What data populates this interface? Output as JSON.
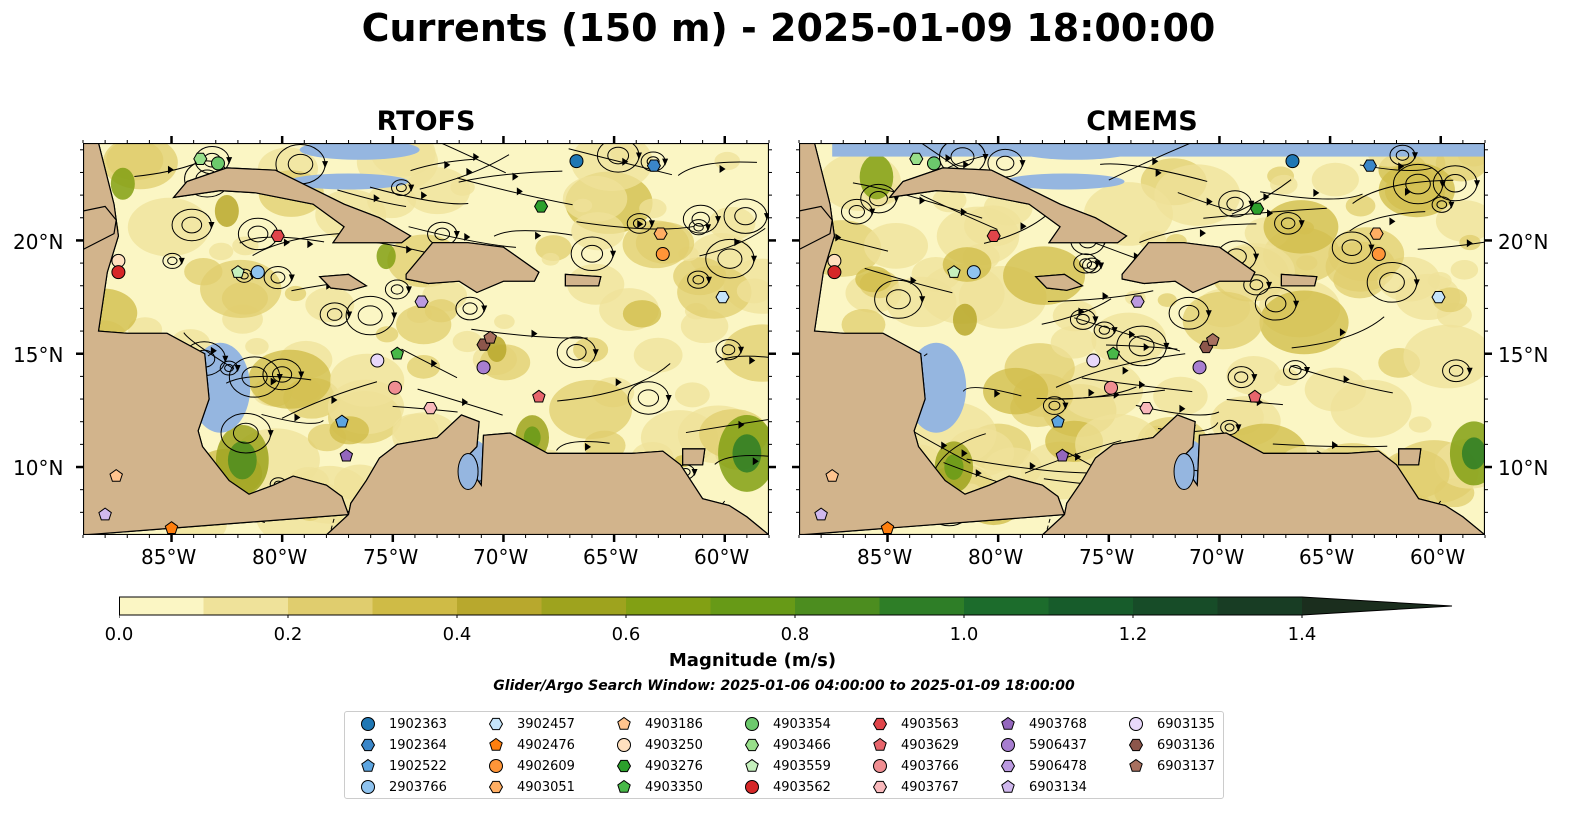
{
  "title": "Currents (150 m) - 2025-01-09 18:00:00",
  "panels": [
    {
      "title": "RTOFS"
    },
    {
      "title": "CMEMS"
    }
  ],
  "axes": {
    "lon_ticks": [
      "85°W",
      "80°W",
      "75°W",
      "70°W",
      "65°W",
      "60°W"
    ],
    "lat_ticks": [
      "20°N",
      "15°N",
      "10°N"
    ]
  },
  "colorbar": {
    "label": "Magnitude (m/s)",
    "ticks": [
      "0.0",
      "0.2",
      "0.4",
      "0.6",
      "0.8",
      "1.0",
      "1.2",
      "1.4"
    ],
    "range": [
      0.0,
      1.5
    ],
    "colors": [
      "#fbf6c4",
      "#efe29a",
      "#e0cd6e",
      "#cfbb46",
      "#b8a82d",
      "#9ea31e",
      "#82a014",
      "#679a17",
      "#4c8d1f",
      "#2e7e27",
      "#1c6c2c",
      "#175c2b",
      "#174c28",
      "#183d24",
      "#1b2e1e"
    ]
  },
  "search_window": "Glider/Argo Search Window: 2025-01-06 04:00:00 to 2025-01-09 18:00:00",
  "legend": [
    {
      "id": "1902363",
      "marker": "circle",
      "color": "#1f77b4"
    },
    {
      "id": "1902364",
      "marker": "hexagon",
      "color": "#3a86c8"
    },
    {
      "id": "1902522",
      "marker": "pentagon",
      "color": "#5da5e0"
    },
    {
      "id": "2903766",
      "marker": "circle",
      "color": "#8fc3ef"
    },
    {
      "id": "3902457",
      "marker": "hexagon",
      "color": "#c5e4fa"
    },
    {
      "id": "4902476",
      "marker": "pentagon",
      "color": "#ff7f0e"
    },
    {
      "id": "4902609",
      "marker": "circle",
      "color": "#ff9538"
    },
    {
      "id": "4903051",
      "marker": "hexagon",
      "color": "#ffae63"
    },
    {
      "id": "4903186",
      "marker": "pentagon",
      "color": "#ffc48e"
    },
    {
      "id": "4903250",
      "marker": "circle",
      "color": "#ffe0bf"
    },
    {
      "id": "4903276",
      "marker": "hexagon",
      "color": "#2ca02c"
    },
    {
      "id": "4903350",
      "marker": "pentagon",
      "color": "#48b848"
    },
    {
      "id": "4903354",
      "marker": "circle",
      "color": "#6cc96c"
    },
    {
      "id": "4903466",
      "marker": "hexagon",
      "color": "#98df8a"
    },
    {
      "id": "4903559",
      "marker": "pentagon",
      "color": "#c6f0bd"
    },
    {
      "id": "4903562",
      "marker": "circle",
      "color": "#d62728"
    },
    {
      "id": "4903563",
      "marker": "hexagon",
      "color": "#e0454a"
    },
    {
      "id": "4903629",
      "marker": "pentagon",
      "color": "#e8656c"
    },
    {
      "id": "4903766",
      "marker": "circle",
      "color": "#f08e92"
    },
    {
      "id": "4903767",
      "marker": "hexagon",
      "color": "#f8b8bb"
    },
    {
      "id": "4903768",
      "marker": "pentagon",
      "color": "#9467bd"
    },
    {
      "id": "5906437",
      "marker": "circle",
      "color": "#a77ed0"
    },
    {
      "id": "5906478",
      "marker": "hexagon",
      "color": "#bb9ae0"
    },
    {
      "id": "6903134",
      "marker": "pentagon",
      "color": "#d0b8ee"
    },
    {
      "id": "6903135",
      "marker": "circle",
      "color": "#e8d8fa"
    },
    {
      "id": "6903136",
      "marker": "hexagon",
      "color": "#8c564b"
    },
    {
      "id": "6903137",
      "marker": "pentagon",
      "color": "#a8705f"
    }
  ],
  "floats": [
    {
      "id": "1902363",
      "rtofs": [
        -66.7,
        23.5
      ],
      "cmems": [
        -66.7,
        23.5
      ]
    },
    {
      "id": "1902364",
      "rtofs": [
        -63.2,
        23.3
      ],
      "cmems": [
        -63.2,
        23.3
      ]
    },
    {
      "id": "1902522",
      "rtofs": [
        -77.3,
        12.0
      ],
      "cmems": [
        -77.3,
        12.0
      ]
    },
    {
      "id": "2903766",
      "rtofs": [
        -81.1,
        18.6
      ],
      "cmems": [
        -81.1,
        18.6
      ]
    },
    {
      "id": "3902457",
      "rtofs": [
        -60.1,
        17.5
      ],
      "cmems": [
        -60.1,
        17.5
      ]
    },
    {
      "id": "4902476",
      "rtofs": [
        -85.0,
        7.3
      ],
      "cmems": [
        -85.0,
        7.3
      ]
    },
    {
      "id": "4902609",
      "rtofs": [
        -62.8,
        19.4
      ],
      "cmems": [
        -62.8,
        19.4
      ]
    },
    {
      "id": "4903051",
      "rtofs": [
        -62.9,
        20.3
      ],
      "cmems": [
        -62.9,
        20.3
      ]
    },
    {
      "id": "4903186",
      "rtofs": [
        -87.5,
        9.6
      ],
      "cmems": [
        -87.5,
        9.6
      ]
    },
    {
      "id": "4903250",
      "rtofs": [
        -87.4,
        19.1
      ],
      "cmems": [
        -87.4,
        19.1
      ]
    },
    {
      "id": "4903276",
      "rtofs": [
        -68.3,
        21.5
      ],
      "cmems": [
        -68.3,
        21.4
      ]
    },
    {
      "id": "4903350",
      "rtofs": [
        -74.8,
        15.0
      ],
      "cmems": [
        -74.8,
        15.0
      ]
    },
    {
      "id": "4903354",
      "rtofs": [
        -82.9,
        23.4
      ],
      "cmems": [
        -82.9,
        23.4
      ]
    },
    {
      "id": "4903466",
      "rtofs": [
        -83.7,
        23.6
      ],
      "cmems": [
        -83.7,
        23.6
      ]
    },
    {
      "id": "4903559",
      "rtofs": [
        -82.0,
        18.6
      ],
      "cmems": [
        -82.0,
        18.6
      ]
    },
    {
      "id": "4903562",
      "rtofs": [
        -87.4,
        18.6
      ],
      "cmems": [
        -87.4,
        18.6
      ]
    },
    {
      "id": "4903563",
      "rtofs": [
        -80.2,
        20.2
      ],
      "cmems": [
        -80.2,
        20.2
      ]
    },
    {
      "id": "4903629",
      "rtofs": [
        -68.4,
        13.1
      ],
      "cmems": [
        -68.4,
        13.1
      ]
    },
    {
      "id": "4903766",
      "rtofs": [
        -74.9,
        13.5
      ],
      "cmems": [
        -74.9,
        13.5
      ]
    },
    {
      "id": "4903767",
      "rtofs": [
        -73.3,
        12.6
      ],
      "cmems": [
        -73.3,
        12.6
      ]
    },
    {
      "id": "4903768",
      "rtofs": [
        -77.1,
        10.5
      ],
      "cmems": [
        -77.1,
        10.5
      ]
    },
    {
      "id": "5906437",
      "rtofs": [
        -70.9,
        14.4
      ],
      "cmems": [
        -70.9,
        14.4
      ]
    },
    {
      "id": "5906478",
      "rtofs": [
        -73.7,
        17.3
      ],
      "cmems": [
        -73.7,
        17.3
      ]
    },
    {
      "id": "6903134",
      "rtofs": [
        -88.0,
        7.9
      ],
      "cmems": [
        -88.0,
        7.9
      ]
    },
    {
      "id": "6903135",
      "rtofs": [
        -75.7,
        14.7
      ],
      "cmems": [
        -75.7,
        14.7
      ]
    },
    {
      "id": "6903136",
      "rtofs": [
        -70.9,
        15.4
      ],
      "cmems": [
        -70.6,
        15.3
      ]
    },
    {
      "id": "6903137",
      "rtofs": [
        -70.6,
        15.7
      ],
      "cmems": [
        -70.3,
        15.6
      ]
    }
  ],
  "extent": {
    "lon": [
      -89,
      -58
    ],
    "lat": [
      7,
      24.3
    ]
  },
  "colors": {
    "land": "#d2b48c",
    "water": "#95b6e0",
    "streamline": "#000000"
  }
}
